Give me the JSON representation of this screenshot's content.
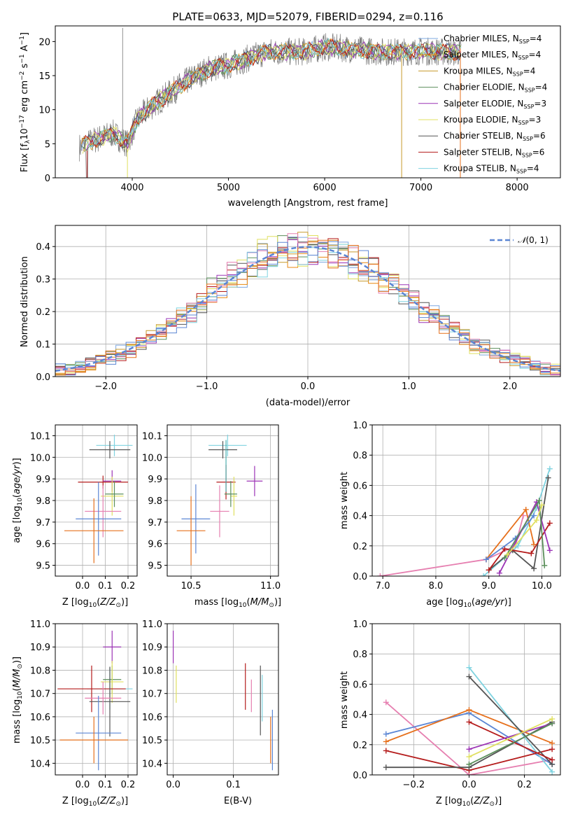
{
  "colors": {
    "Chabrier MILES": "#7ea8e0",
    "Salpeter MILES": "#e8870f",
    "Kroupa MILES": "#c79a2c",
    "Chabrier ELODIE": "#5b8f5b",
    "Salpeter ELODIE": "#9b33b5",
    "Kroupa ELODIE": "#e0e060",
    "Chabrier STELIB": "#555555",
    "Salpeter STELIB": "#b51c1c",
    "Kroupa STELIB": "#7fd3e0",
    "pink": "#e67fb0",
    "blue": "#5b86d4",
    "orange": "#e6701c",
    "green": "#6a9a6a",
    "purple": "#a04ac0",
    "lime": "#d7e86a",
    "teal": "#4fb0b0"
  },
  "chart_data": [
    {
      "type": "line",
      "title": "PLATE=0633, MJD=52079, FIBERID=0294, z=0.116",
      "xlabel": "wavelength [Angstrom, rest frame]",
      "ylabel": "Flux [f_λ 10^-17 erg cm^-2 s^-1 A^-1]",
      "xlim": [
        3200,
        8450
      ],
      "ylim": [
        0,
        22.3
      ],
      "xticks": [
        4000,
        5000,
        6000,
        7000,
        8000
      ],
      "yticks": [
        0,
        5,
        10,
        15,
        20
      ],
      "grid": false,
      "legend_placement": "upper right",
      "legend": [
        {
          "label": "Chabrier MILES, N",
          "sub": "SSP",
          "tail": "=4"
        },
        {
          "label": "Salpeter MILES, N",
          "sub": "SSP",
          "tail": "=4"
        },
        {
          "label": "Kroupa MILES, N",
          "sub": "SSP",
          "tail": "=4"
        },
        {
          "label": "Chabrier ELODIE, N",
          "sub": "SSP",
          "tail": "=4"
        },
        {
          "label": "Salpeter ELODIE, N",
          "sub": "SSP",
          "tail": "=3"
        },
        {
          "label": "Kroupa ELODIE, N",
          "sub": "SSP",
          "tail": "=3"
        },
        {
          "label": "Chabrier STELIB, N",
          "sub": "SSP",
          "tail": "=6"
        },
        {
          "label": "Salpeter STELIB, N",
          "sub": "SSP",
          "tail": "=6"
        },
        {
          "label": "Kroupa STELIB, N",
          "sub": "SSP",
          "tail": "=4"
        }
      ],
      "continuum": {
        "x": [
          3450,
          3600,
          3800,
          3950,
          4050,
          4200,
          4400,
          4600,
          4800,
          5000,
          5200,
          5400,
          5600,
          5800,
          6000,
          6200,
          6400,
          6600,
          6800,
          7000,
          7200,
          7400
        ],
        "y": [
          4.5,
          5.5,
          6.5,
          5.0,
          8.5,
          10.5,
          12.5,
          14.5,
          16.0,
          16.5,
          17.5,
          18.5,
          18.5,
          18.5,
          19.2,
          19.0,
          18.7,
          18.5,
          18.5,
          18.6,
          18.5,
          18.4
        ]
      }
    },
    {
      "type": "bar",
      "xlabel": "(data-model)/error",
      "ylabel": "Normed distribution",
      "xlim": [
        -2.5,
        2.5
      ],
      "ylim": [
        0,
        0.465
      ],
      "xticks": [
        -2,
        -1,
        0,
        1,
        2
      ],
      "yticks": [
        0.0,
        0.1,
        0.2,
        0.3,
        0.4
      ],
      "grid": true,
      "legend_placement": "upper right",
      "legend": [
        {
          "label": "N(0,1)",
          "style": "dashed"
        }
      ],
      "gaussian": {
        "mu": 0,
        "sigma": 1,
        "amplitude": 0.399
      },
      "bin_width": 0.1
    },
    {
      "type": "scatter",
      "xlabel": "Z [log10(Z/Z⊙)]",
      "ylabel": "age  [log10(age/yr)]",
      "xlim": [
        -0.12,
        0.24
      ],
      "ylim": [
        9.45,
        10.15
      ],
      "xticks": [
        0.0,
        0.1,
        0.2
      ],
      "yticks": [
        9.5,
        9.6,
        9.7,
        9.8,
        9.9,
        10.0,
        10.1
      ],
      "grid": true,
      "points": [
        {
          "x": 0.14,
          "y": 10.055,
          "ex": 0.08,
          "ey": 0.05,
          "color": "Kroupa STELIB"
        },
        {
          "x": 0.12,
          "y": 10.035,
          "ex": 0.09,
          "ey": 0.04,
          "color": "Chabrier STELIB"
        },
        {
          "x": 0.09,
          "y": 9.885,
          "ex": 0.11,
          "ey": 0.03,
          "color": "Salpeter STELIB"
        },
        {
          "x": 0.13,
          "y": 9.89,
          "ex": 0.04,
          "ey": 0.05,
          "color": "Salpeter ELODIE"
        },
        {
          "x": 0.13,
          "y": 9.82,
          "ex": 0.05,
          "ey": 0.09,
          "color": "Kroupa ELODIE"
        },
        {
          "x": 0.14,
          "y": 9.83,
          "ex": 0.04,
          "ey": 0.06,
          "color": "Chabrier ELODIE"
        },
        {
          "x": 0.09,
          "y": 9.75,
          "ex": 0.08,
          "ey": 0.12,
          "color": "pink"
        },
        {
          "x": 0.07,
          "y": 9.715,
          "ex": 0.1,
          "ey": 0.17,
          "color": "blue"
        },
        {
          "x": 0.05,
          "y": 9.66,
          "ex": 0.13,
          "ey": 0.15,
          "color": "orange"
        }
      ]
    },
    {
      "type": "scatter",
      "xlabel": "mass [log10(M/M⊙)]",
      "ylabel": "",
      "xlim": [
        10.35,
        11.05
      ],
      "ylim": [
        9.45,
        10.15
      ],
      "xticks": [
        10.5,
        11.0
      ],
      "yticks": [
        9.5,
        9.6,
        9.7,
        9.8,
        9.9,
        10.0,
        10.1
      ],
      "grid": true,
      "points": [
        {
          "x": 10.73,
          "y": 10.055,
          "ex": 0.12,
          "ey": 0.05,
          "color": "Kroupa STELIB"
        },
        {
          "x": 10.7,
          "y": 10.035,
          "ex": 0.09,
          "ey": 0.04,
          "color": "Chabrier STELIB"
        },
        {
          "x": 10.72,
          "y": 9.885,
          "ex": 0.06,
          "ey": 0.08,
          "color": "Salpeter STELIB"
        },
        {
          "x": 10.9,
          "y": 9.89,
          "ex": 0.05,
          "ey": 0.07,
          "color": "Salpeter ELODIE"
        },
        {
          "x": 10.77,
          "y": 9.82,
          "ex": 0.02,
          "ey": 0.09,
          "color": "Kroupa ELODIE"
        },
        {
          "x": 10.75,
          "y": 9.83,
          "ex": 0.04,
          "ey": 0.06,
          "color": "Chabrier ELODIE"
        },
        {
          "x": 10.68,
          "y": 9.75,
          "ex": 0.06,
          "ey": 0.12,
          "color": "pink"
        },
        {
          "x": 10.53,
          "y": 9.715,
          "ex": 0.09,
          "ey": 0.16,
          "color": "blue"
        },
        {
          "x": 10.5,
          "y": 9.66,
          "ex": 0.09,
          "ey": 0.16,
          "color": "orange"
        },
        {
          "x": 10.72,
          "y": 9.96,
          "ex": 0.0,
          "ey": 0.12,
          "color": "teal"
        }
      ]
    },
    {
      "type": "line",
      "xlabel": "age  [log10(age/yr)]",
      "ylabel": "mass weight",
      "xlim": [
        6.8,
        10.35
      ],
      "ylim": [
        0,
        1
      ],
      "xticks": [
        7,
        8,
        9,
        10
      ],
      "yticks": [
        0.0,
        0.2,
        0.4,
        0.6,
        0.8,
        1.0
      ],
      "grid": true,
      "series": [
        {
          "color": "pink",
          "x": [
            6.95,
            8.95,
            9.5,
            9.65
          ],
          "y": [
            0.0,
            0.11,
            0.2,
            0.4
          ]
        },
        {
          "color": "Kroupa STELIB",
          "x": [
            8.9,
            9.55,
            9.9,
            10.15
          ],
          "y": [
            0.0,
            0.2,
            0.45,
            0.71
          ]
        },
        {
          "color": "Chabrier STELIB",
          "x": [
            9.0,
            9.45,
            9.85,
            10.12
          ],
          "y": [
            0.04,
            0.17,
            0.05,
            0.65
          ]
        },
        {
          "color": "Salpeter STELIB",
          "x": [
            9.0,
            9.3,
            9.8,
            10.15
          ],
          "y": [
            0.04,
            0.18,
            0.15,
            0.35
          ]
        },
        {
          "color": "orange",
          "x": [
            8.95,
            9.7,
            9.85
          ],
          "y": [
            0.11,
            0.44,
            0.21
          ]
        },
        {
          "color": "blue",
          "x": [
            8.95,
            9.5,
            9.85
          ],
          "y": [
            0.11,
            0.25,
            0.4
          ]
        },
        {
          "color": "Salpeter ELODIE",
          "x": [
            9.2,
            9.9,
            10.15
          ],
          "y": [
            0.02,
            0.49,
            0.17
          ]
        },
        {
          "color": "Chabrier ELODIE",
          "x": [
            9.3,
            9.95,
            10.05
          ],
          "y": [
            0.12,
            0.5,
            0.07
          ]
        },
        {
          "color": "Kroupa ELODIE",
          "x": [
            9.35,
            9.9,
            10.0
          ],
          "y": [
            0.14,
            0.37,
            0.47
          ]
        }
      ]
    },
    {
      "type": "scatter",
      "xlabel": "Z [log10(Z/Z⊙)]",
      "ylabel": "mass [log10(M/M⊙)]",
      "xlim": [
        -0.12,
        0.24
      ],
      "ylim": [
        10.35,
        11.0
      ],
      "xticks": [
        0.0,
        0.1,
        0.2
      ],
      "yticks": [
        10.4,
        10.5,
        10.6,
        10.7,
        10.8,
        10.9,
        11.0
      ],
      "grid": true,
      "points": [
        {
          "x": 0.13,
          "y": 10.9,
          "ex": 0.04,
          "ey": 0.07,
          "color": "Salpeter ELODIE"
        },
        {
          "x": 0.13,
          "y": 10.76,
          "ex": 0.04,
          "ey": 0.06,
          "color": "Chabrier ELODIE"
        },
        {
          "x": 0.13,
          "y": 10.75,
          "ex": 0.05,
          "ey": 0.09,
          "color": "Kroupa ELODIE"
        },
        {
          "x": 0.12,
          "y": 10.72,
          "ex": 0.1,
          "ey": 0.09,
          "color": "Kroupa STELIB"
        },
        {
          "x": 0.04,
          "y": 10.72,
          "ex": 0.15,
          "ey": 0.1,
          "color": "Salpeter STELIB"
        },
        {
          "x": 0.12,
          "y": 10.665,
          "ex": 0.09,
          "ey": 0.15,
          "color": "Chabrier STELIB"
        },
        {
          "x": 0.09,
          "y": 10.68,
          "ex": 0.08,
          "ey": 0.07,
          "color": "pink"
        },
        {
          "x": 0.07,
          "y": 10.53,
          "ex": 0.1,
          "ey": 0.16,
          "color": "blue"
        },
        {
          "x": 0.05,
          "y": 10.5,
          "ex": 0.15,
          "ey": 0.1,
          "color": "orange"
        }
      ]
    },
    {
      "type": "scatter",
      "xlabel": "E(B-V)",
      "ylabel": "",
      "xlim": [
        -0.01,
        0.175
      ],
      "ylim": [
        10.35,
        11.0
      ],
      "xticks": [
        0.0,
        0.1
      ],
      "yticks": [
        10.4,
        10.5,
        10.6,
        10.7,
        10.8,
        10.9,
        11.0
      ],
      "grid": true,
      "points": [
        {
          "x": 0.0,
          "y": 10.9,
          "ex": 0.0,
          "ey": 0.07,
          "color": "Salpeter ELODIE"
        },
        {
          "x": 0.005,
          "y": 10.74,
          "ex": 0.0,
          "ey": 0.08,
          "color": "Kroupa ELODIE"
        },
        {
          "x": 0.12,
          "y": 10.73,
          "ex": 0.0,
          "ey": 0.1,
          "color": "Salpeter STELIB"
        },
        {
          "x": 0.13,
          "y": 10.69,
          "ex": 0.0,
          "ey": 0.07,
          "color": "pink"
        },
        {
          "x": 0.145,
          "y": 10.67,
          "ex": 0.0,
          "ey": 0.15,
          "color": "Chabrier STELIB"
        },
        {
          "x": 0.148,
          "y": 10.68,
          "ex": 0.0,
          "ey": 0.1,
          "color": "Kroupa STELIB"
        },
        {
          "x": 0.162,
          "y": 10.5,
          "ex": 0.0,
          "ey": 0.1,
          "color": "orange"
        },
        {
          "x": 0.165,
          "y": 10.5,
          "ex": 0.0,
          "ey": 0.13,
          "color": "blue"
        }
      ]
    },
    {
      "type": "line",
      "xlabel": "Z [log10(Z/Z⊙)]",
      "ylabel": "mass weight",
      "xlim": [
        -0.35,
        0.33
      ],
      "ylim": [
        0,
        1
      ],
      "xticks": [
        -0.2,
        0.0,
        0.2
      ],
      "yticks": [
        0.0,
        0.2,
        0.4,
        0.6,
        0.8,
        1.0
      ],
      "grid": true,
      "series": [
        {
          "color": "pink",
          "x": [
            -0.3,
            0.0,
            0.3
          ],
          "y": [
            0.48,
            0.0,
            0.1
          ]
        },
        {
          "color": "blue",
          "x": [
            -0.3,
            0.0,
            0.3
          ],
          "y": [
            0.27,
            0.41,
            0.07
          ]
        },
        {
          "color": "orange",
          "x": [
            -0.3,
            0.0,
            0.3
          ],
          "y": [
            0.22,
            0.43,
            0.21
          ]
        },
        {
          "color": "Salpeter STELIB",
          "x": [
            -0.3,
            0.0,
            0.3
          ],
          "y": [
            0.16,
            0.03,
            0.17
          ]
        },
        {
          "color": "Chabrier STELIB",
          "x": [
            -0.3,
            0.0,
            0.3
          ],
          "y": [
            0.05,
            0.05,
            0.35
          ]
        },
        {
          "color": "Kroupa STELIB",
          "x": [
            0.0,
            0.3
          ],
          "y": [
            0.71,
            0.02
          ]
        },
        {
          "color": "Chabrier STELIB",
          "x": [
            0.0,
            0.3
          ],
          "y": [
            0.65,
            0.07
          ]
        },
        {
          "color": "Salpeter STELIB",
          "x": [
            0.0,
            0.3
          ],
          "y": [
            0.35,
            0.1
          ]
        },
        {
          "color": "Salpeter ELODIE",
          "x": [
            0.0,
            0.3
          ],
          "y": [
            0.17,
            0.34
          ]
        },
        {
          "color": "Chabrier ELODIE",
          "x": [
            0.0,
            0.3
          ],
          "y": [
            0.07,
            0.34
          ]
        },
        {
          "color": "Kroupa ELODIE",
          "x": [
            0.0,
            0.3
          ],
          "y": [
            0.12,
            0.37
          ]
        }
      ]
    }
  ]
}
